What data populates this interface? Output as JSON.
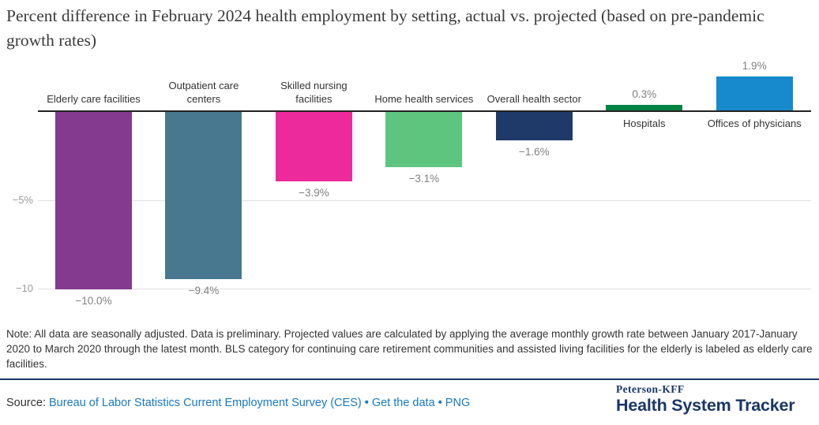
{
  "title": "Percent difference in February 2024 health employment by setting, actual vs. projected (based on pre-pandemic growth rates)",
  "chart_data": {
    "type": "bar",
    "categories": [
      "Elderly care facilities",
      "Outpatient care centers",
      "Skilled nursing facilities",
      "Home health services",
      "Overall health sector",
      "Hospitals",
      "Offices of physicians"
    ],
    "values": [
      -10.0,
      -9.4,
      -3.9,
      -3.1,
      -1.6,
      0.3,
      1.9
    ],
    "value_labels": [
      "−10.0%",
      "−9.4%",
      "−3.9%",
      "−3.1%",
      "−1.6%",
      "0.3%",
      "1.9%"
    ],
    "bar_colors": [
      "#833a8f",
      "#47788f",
      "#ed2a9c",
      "#5ec57e",
      "#1f3a68",
      "#038442",
      "#1789cd"
    ],
    "yticks": [
      {
        "label": "−5%",
        "value": -5
      },
      {
        "label": "−10",
        "value": -10
      }
    ],
    "ylim": [
      -10.5,
      2.5
    ],
    "grid": true,
    "xlabel": "",
    "ylabel": ""
  },
  "note": "Note: All data are seasonally adjusted. Data is preliminary. Projected values are calculated by applying the average monthly growth rate between January 2017-January 2020 to March 2020 through the latest month. BLS category for continuing care retirement communities and assisted living facilities for the elderly is labeled as elderly care facilities.",
  "source": {
    "prefix": "Source:",
    "links": [
      "Bureau of Labor Statistics Current Employment Survey (CES)",
      "Get the data",
      "PNG"
    ],
    "separator": "•"
  },
  "branding": {
    "line1": "Peterson-KFF",
    "line2": "Health System Tracker"
  },
  "colors": {
    "link_blue": "#1779c4",
    "brand_navy": "#1a3668",
    "axis_line": "#222222",
    "gridline": "#e0e0e0",
    "value_label_gray": "#808080",
    "category_label": "#333333"
  }
}
